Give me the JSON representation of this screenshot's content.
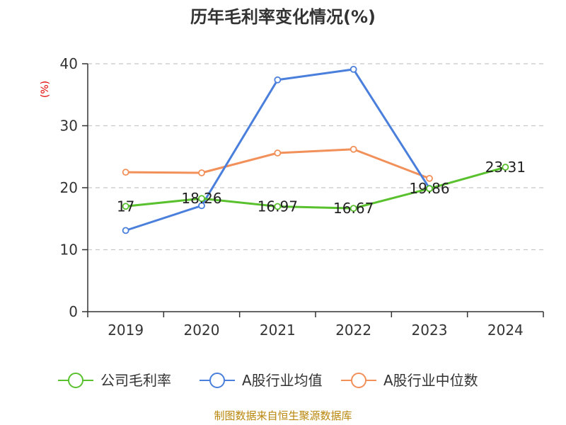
{
  "chart_data": {
    "type": "line",
    "title": "历年毛利率变化情况(%)",
    "ylabel": "(%)",
    "categories": [
      "2019",
      "2020",
      "2021",
      "2022",
      "2023",
      "2024"
    ],
    "ylim": [
      0,
      40
    ],
    "yticks": [
      0,
      10,
      20,
      30,
      40
    ],
    "grid": true,
    "legend_position": "bottom",
    "series": [
      {
        "name": "公司毛利率",
        "color": "#5ac12e",
        "values": [
          17.0,
          18.26,
          16.97,
          16.67,
          19.86,
          23.31
        ],
        "labels": [
          "17",
          "18.26",
          "16.97",
          "16.67",
          "19.86",
          "23.31"
        ]
      },
      {
        "name": "A股行业均值",
        "color": "#4a7fdc",
        "values": [
          13.1,
          17.1,
          37.4,
          39.1,
          19.9,
          null
        ]
      },
      {
        "name": "A股行业中位数",
        "color": "#f2905a",
        "values": [
          22.5,
          22.4,
          25.6,
          26.2,
          21.5,
          null
        ]
      }
    ],
    "source": "制图数据来自恒生聚源数据库"
  }
}
